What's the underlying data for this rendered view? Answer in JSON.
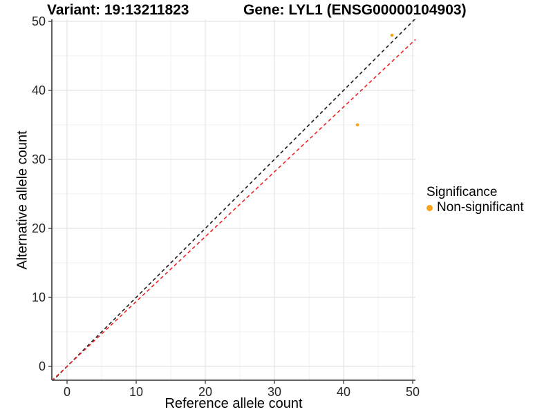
{
  "header": {
    "variant_title": "Variant: 19:13211823",
    "gene_title": "Gene: LYL1 (ENSG00000104903)"
  },
  "axes": {
    "x_label": "Reference allele count",
    "y_label": "Alternative allele count"
  },
  "legend": {
    "title": "Significance",
    "items": [
      {
        "label": "Non-significant",
        "color": "#F9A31B"
      }
    ]
  },
  "chart_data": {
    "type": "scatter",
    "title": "Variant: 19:13211823    Gene: LYL1 (ENSG00000104903)",
    "xlabel": "Reference allele count",
    "ylabel": "Alternative allele count",
    "xlim": [
      -2.2,
      50.4
    ],
    "ylim": [
      -2.0,
      50.3
    ],
    "x_ticks": [
      0,
      10,
      20,
      30,
      40,
      50
    ],
    "y_ticks": [
      0,
      10,
      20,
      30,
      40,
      50
    ],
    "x_minor_ticks": [
      5,
      15,
      25,
      35,
      45
    ],
    "y_minor_ticks": [
      5,
      15,
      25,
      35,
      45
    ],
    "grid": true,
    "legend_position": "right",
    "points": [
      {
        "x": 42,
        "y": 35,
        "series": "Non-significant"
      },
      {
        "x": 47,
        "y": 48,
        "series": "Non-significant"
      }
    ],
    "point_color": "#F9A31B",
    "reference_lines": [
      {
        "name": "identity",
        "slope": 1.0,
        "intercept": 0,
        "style": "dashed",
        "color": "#1a1a1a"
      },
      {
        "name": "expected-ratio",
        "slope": 0.94,
        "intercept": 0,
        "style": "dashed",
        "color": "#ED2024"
      }
    ],
    "colors": {
      "grid_major": "#e4e4e4",
      "grid_minor": "#f1f1f1",
      "axis_line": "#4d4d4d",
      "tick_mark": "#333333",
      "tick_text": "#262626"
    }
  }
}
